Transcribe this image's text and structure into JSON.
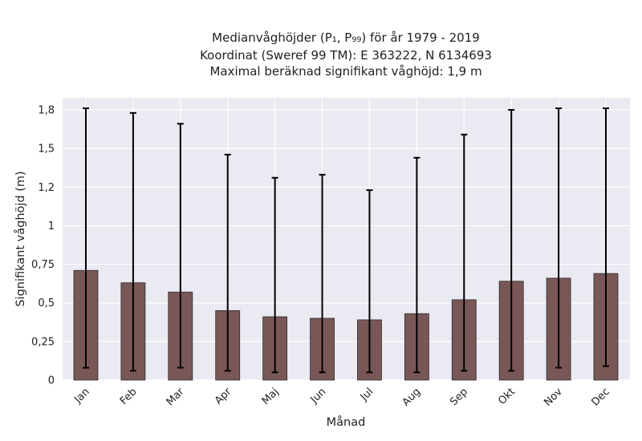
{
  "chart_data": {
    "type": "bar",
    "title_lines": [
      "Medianvåghöjder (P₁, P₉₉) för år 1979 - 2019",
      "Koordinat (Sweref 99 TM): E 363222, N 6134693",
      "Maximal beräknad signifikant våghöjd: 1,9 m"
    ],
    "xlabel": "Månad",
    "ylabel": "Signifikant våghöjd (m)",
    "categories": [
      "Jan",
      "Feb",
      "Mar",
      "Apr",
      "Maj",
      "Jun",
      "Jul",
      "Aug",
      "Sep",
      "Okt",
      "Nov",
      "Dec"
    ],
    "values": [
      0.71,
      0.63,
      0.57,
      0.45,
      0.41,
      0.4,
      0.39,
      0.43,
      0.52,
      0.64,
      0.66,
      0.69
    ],
    "error_low": [
      0.08,
      0.06,
      0.08,
      0.06,
      0.05,
      0.05,
      0.05,
      0.05,
      0.06,
      0.06,
      0.08,
      0.09
    ],
    "error_high": [
      1.76,
      1.73,
      1.66,
      1.46,
      1.31,
      1.33,
      1.23,
      1.44,
      1.59,
      1.75,
      1.76,
      1.76
    ],
    "ylim": [
      0,
      1.8
    ],
    "yticks": [
      0,
      0.25,
      0.5,
      0.75,
      1,
      1.25,
      1.5,
      1.75
    ],
    "ytick_labels": [
      "0",
      "0,25",
      "0,5",
      "0,75",
      "1",
      "1,2",
      "1,5",
      "1,8"
    ],
    "grid": true,
    "colors": {
      "bar_fill": "#7a5757",
      "bar_edge": "#2a2a2a",
      "error_bar": "#000000",
      "plot_bg": "#eaeaf2",
      "grid": "#ffffff",
      "text": "#222222"
    }
  }
}
